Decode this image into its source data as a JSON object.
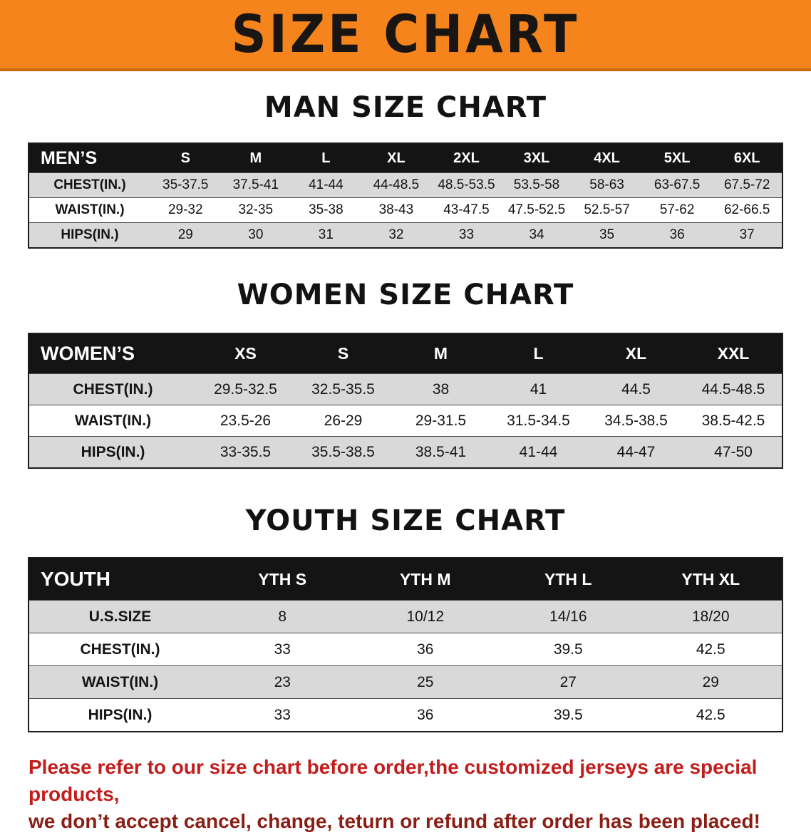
{
  "banner": {
    "title": "SIZE CHART",
    "bg_color": "#f6841c",
    "text_color": "#181512"
  },
  "tables": [
    {
      "section_title": "MAN SIZE CHART",
      "header": [
        "MEN’S",
        "S",
        "M",
        "L",
        "XL",
        "2XL",
        "3XL",
        "4XL",
        "5XL",
        "6XL"
      ],
      "rows": [
        [
          "CHEST(IN.)",
          "35-37.5",
          "37.5-41",
          "41-44",
          "44-48.5",
          "48.5-53.5",
          "53.5-58",
          "58-63",
          "63-67.5",
          "67.5-72"
        ],
        [
          "WAIST(IN.)",
          "29-32",
          "32-35",
          "35-38",
          "38-43",
          "43-47.5",
          "47.5-52.5",
          "52.5-57",
          "57-62",
          "62-66.5"
        ],
        [
          "HIPS(IN.)",
          "29",
          "30",
          "31",
          "32",
          "33",
          "34",
          "35",
          "36",
          "37"
        ]
      ]
    },
    {
      "section_title": "WOMEN SIZE CHART",
      "header": [
        "WOMEN’S",
        "XS",
        "S",
        "M",
        "L",
        "XL",
        "XXL"
      ],
      "rows": [
        [
          "CHEST(IN.)",
          "29.5-32.5",
          "32.5-35.5",
          "38",
          "41",
          "44.5",
          "44.5-48.5"
        ],
        [
          "WAIST(IN.)",
          "23.5-26",
          "26-29",
          "29-31.5",
          "31.5-34.5",
          "34.5-38.5",
          "38.5-42.5"
        ],
        [
          "HIPS(IN.)",
          "33-35.5",
          "35.5-38.5",
          "38.5-41",
          "41-44",
          "44-47",
          "47-50"
        ]
      ]
    },
    {
      "section_title": "YOUTH SIZE CHART",
      "header": [
        "YOUTH",
        "YTH S",
        "YTH M",
        "YTH L",
        "YTH XL"
      ],
      "rows": [
        [
          "U.S.SIZE",
          "8",
          "10/12",
          "14/16",
          "18/20"
        ],
        [
          "CHEST(IN.)",
          "33",
          "36",
          "39.5",
          "42.5"
        ],
        [
          "WAIST(IN.)",
          "23",
          "25",
          "27",
          "29"
        ],
        [
          "HIPS(IN.)",
          "33",
          "36",
          "39.5",
          "42.5"
        ]
      ]
    }
  ],
  "disclaimer": {
    "lines": [
      "Please refer to our size chart before order,the customized jerseys are special products,",
      "we don’t accept cancel, change, teturn or refund after order has been placed!"
    ],
    "line1_color": "#c31c1c",
    "line2_color": "#8a1d14"
  },
  "colors": {
    "row_shade": "#d9d9d9",
    "table_header_bg": "#141414"
  }
}
